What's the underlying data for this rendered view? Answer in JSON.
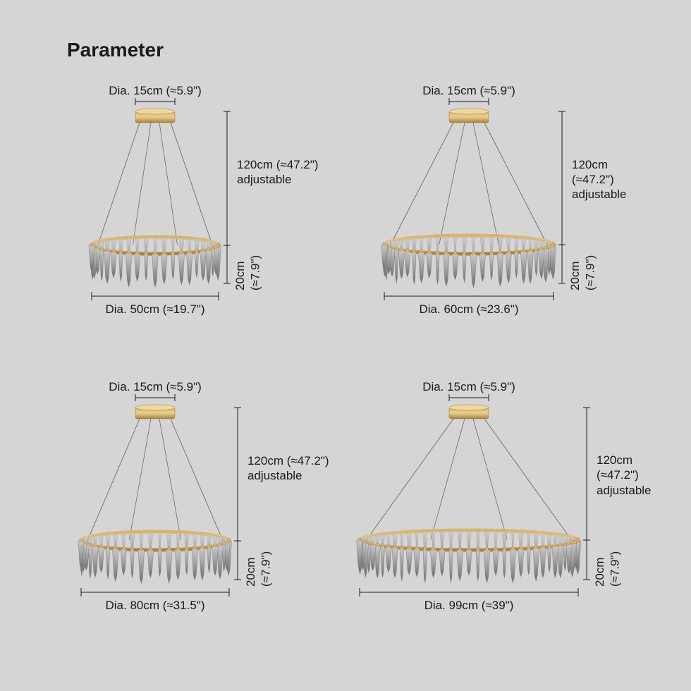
{
  "title": "Parameter",
  "background_color": "#d5d5d5",
  "text_color": "#1a1a1a",
  "brass_light": "#d8b56a",
  "brass_dark": "#a6813a",
  "wire_color": "#6b6b6b",
  "crystal_light": "#c8c8c8",
  "crystal_mid": "#9e9e9e",
  "crystal_dark": "#6f6f6f",
  "dimension_line": "#1a1a1a",
  "cells": [
    {
      "top_label": "Dia. 15cm (≈5.9\")",
      "hang_label": "120cm (≈47.2\")\nadjustable",
      "height_label": "20cm (≈7.9\")",
      "bottom_label": "Dia. 50cm (≈19.7\")",
      "ring_half_width": 90,
      "ring_ry": 12
    },
    {
      "top_label": "Dia. 15cm (≈5.9\")",
      "hang_label": "120cm (≈47.2\")\nadjustable",
      "height_label": "20cm (≈7.9\")",
      "bottom_label": "Dia. 60cm (≈23.6\")",
      "ring_half_width": 120,
      "ring_ry": 13
    },
    {
      "top_label": "Dia. 15cm (≈5.9\")",
      "hang_label": "120cm (≈47.2\")\nadjustable",
      "height_label": "20cm (≈7.9\")",
      "bottom_label": "Dia. 80cm (≈31.5\")",
      "ring_half_width": 105,
      "ring_ry": 13
    },
    {
      "top_label": "Dia. 15cm (≈5.9\")",
      "hang_label": "120cm (≈47.2\")\nadjustable",
      "height_label": "20cm (≈7.9\")",
      "bottom_label": "Dia. 99cm (≈39\")",
      "ring_half_width": 155,
      "ring_ry": 14
    }
  ]
}
